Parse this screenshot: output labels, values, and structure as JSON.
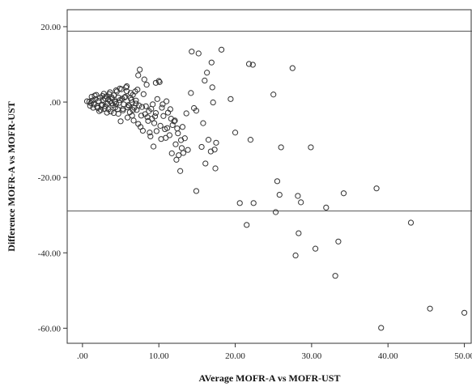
{
  "chart_data": {
    "type": "scatter",
    "title": "",
    "xlabel": "AVerage MOFR-A vs MOFR-UST",
    "ylabel": "Difference MOFR-A vs MOFR-UST",
    "xlim": [
      -2,
      51
    ],
    "ylim": [
      -64,
      24.5
    ],
    "xticks": [
      ".00",
      "10.00",
      "20.00",
      "30.00",
      "40.00",
      "50.00"
    ],
    "xtick_values": [
      0,
      10,
      20,
      30,
      40,
      50
    ],
    "yticks": [
      "20.00",
      ".00",
      "-20.00",
      "-40.00",
      "-60.00"
    ],
    "ytick_values": [
      20,
      0,
      -20,
      -40,
      -60
    ],
    "reference_lines": [
      18.8,
      -28.9
    ],
    "grid": false,
    "marker": "open-circle",
    "points": [
      [
        0.6,
        0.2
      ],
      [
        0.9,
        0.1
      ],
      [
        1.1,
        -0.3
      ],
      [
        1.3,
        0.4
      ],
      [
        1.5,
        -0.6
      ],
      [
        1.7,
        0.8
      ],
      [
        1.9,
        -1.2
      ],
      [
        2.1,
        0.3
      ],
      [
        2.3,
        1.1
      ],
      [
        2.5,
        -0.9
      ],
      [
        2.7,
        0.6
      ],
      [
        2.9,
        -1.8
      ],
      [
        3.1,
        1.5
      ],
      [
        3.3,
        -0.4
      ],
      [
        3.5,
        2.1
      ],
      [
        3.7,
        -2.5
      ],
      [
        3.9,
        0.9
      ],
      [
        4.1,
        1.8
      ],
      [
        4.3,
        -1.4
      ],
      [
        4.5,
        2.8
      ],
      [
        4.7,
        -3.1
      ],
      [
        4.9,
        0.5
      ],
      [
        5.1,
        3.4
      ],
      [
        5.3,
        -2.2
      ],
      [
        5.5,
        1.2
      ],
      [
        5.7,
        3.9
      ],
      [
        5.9,
        -4.1
      ],
      [
        6.1,
        -1.0
      ],
      [
        6.3,
        2.4
      ],
      [
        6.5,
        -3.6
      ],
      [
        1.2,
        1.4
      ],
      [
        1.6,
        1.7
      ],
      [
        2.0,
        -1.6
      ],
      [
        2.4,
        -2.1
      ],
      [
        2.8,
        2.2
      ],
      [
        3.2,
        -2.8
      ],
      [
        3.6,
        2.6
      ],
      [
        4.0,
        -0.8
      ],
      [
        4.4,
        3.1
      ],
      [
        4.8,
        -0.2
      ],
      [
        1.0,
        -1.0
      ],
      [
        1.4,
        -1.5
      ],
      [
        1.8,
        1.9
      ],
      [
        2.2,
        -2.4
      ],
      [
        2.6,
        1.6
      ],
      [
        3.0,
        -1.1
      ],
      [
        3.4,
        0.7
      ],
      [
        3.8,
        1.3
      ],
      [
        4.2,
        0.1
      ],
      [
        4.6,
        -1.9
      ],
      [
        5.0,
        -5.1
      ],
      [
        5.4,
        -0.6
      ],
      [
        5.8,
        2.9
      ],
      [
        6.2,
        -2.7
      ],
      [
        6.6,
        1.9
      ],
      [
        6.8,
        -1.5
      ],
      [
        7.0,
        0.4
      ],
      [
        7.2,
        3.3
      ],
      [
        7.4,
        -0.9
      ],
      [
        7.6,
        -6.6
      ],
      [
        7.8,
        -1.3
      ],
      [
        8.0,
        2.1
      ],
      [
        8.2,
        -3.2
      ],
      [
        8.4,
        4.6
      ],
      [
        8.6,
        -5.0
      ],
      [
        8.8,
        -8.1
      ],
      [
        9.0,
        -1.8
      ],
      [
        9.2,
        -0.6
      ],
      [
        9.4,
        -5.6
      ],
      [
        9.6,
        -2.9
      ],
      [
        9.8,
        0.8
      ],
      [
        10.0,
        5.6
      ],
      [
        10.2,
        -6.3
      ],
      [
        10.4,
        -1.5
      ],
      [
        10.6,
        -3.7
      ],
      [
        10.8,
        -7.2
      ],
      [
        11.0,
        0.2
      ],
      [
        11.2,
        -2.8
      ],
      [
        11.4,
        -8.8
      ],
      [
        11.6,
        -4.4
      ],
      [
        11.8,
        -6.1
      ],
      [
        12.0,
        -5.1
      ],
      [
        12.2,
        -11.2
      ],
      [
        12.4,
        -7.0
      ],
      [
        12.6,
        -14.1
      ],
      [
        12.8,
        -18.3
      ],
      [
        13.0,
        -12.2
      ],
      [
        13.2,
        -13.5
      ],
      [
        13.4,
        -9.6
      ],
      [
        13.6,
        -3.0
      ],
      [
        7.5,
        8.6
      ],
      [
        7.3,
        7.1
      ],
      [
        8.1,
        6.0
      ],
      [
        9.6,
        5.1
      ],
      [
        10.1,
        5.3
      ],
      [
        14.3,
        13.4
      ],
      [
        15.2,
        12.9
      ],
      [
        16.0,
        5.7
      ],
      [
        16.3,
        7.8
      ],
      [
        16.9,
        10.5
      ],
      [
        17.0,
        3.9
      ],
      [
        17.1,
        -0.1
      ],
      [
        17.3,
        -12.6
      ],
      [
        17.5,
        -10.8
      ],
      [
        16.5,
        -10.0
      ],
      [
        16.8,
        -13.1
      ],
      [
        17.4,
        -17.6
      ],
      [
        16.1,
        -16.3
      ],
      [
        15.6,
        -11.9
      ],
      [
        14.9,
        -23.6
      ],
      [
        14.2,
        2.4
      ],
      [
        14.9,
        -2.3
      ],
      [
        15.8,
        -5.6
      ],
      [
        18.2,
        13.9
      ],
      [
        19.4,
        0.8
      ],
      [
        20.0,
        -8.1
      ],
      [
        21.8,
        10.1
      ],
      [
        22.0,
        -10.0
      ],
      [
        22.4,
        -26.8
      ],
      [
        22.3,
        9.9
      ],
      [
        20.6,
        -26.8
      ],
      [
        21.5,
        -32.6
      ],
      [
        25.0,
        2.0
      ],
      [
        25.5,
        -21.0
      ],
      [
        25.8,
        -24.6
      ],
      [
        26.0,
        -12.0
      ],
      [
        25.3,
        -29.2
      ],
      [
        27.5,
        9.0
      ],
      [
        28.2,
        -24.9
      ],
      [
        28.6,
        -26.6
      ],
      [
        28.3,
        -34.8
      ],
      [
        29.9,
        -12.0
      ],
      [
        27.9,
        -40.7
      ],
      [
        30.5,
        -38.9
      ],
      [
        31.9,
        -28.0
      ],
      [
        33.1,
        -46.1
      ],
      [
        33.5,
        -37.0
      ],
      [
        34.2,
        -24.2
      ],
      [
        38.5,
        -22.9
      ],
      [
        39.1,
        -59.9
      ],
      [
        43.0,
        -32.0
      ],
      [
        45.5,
        -54.8
      ],
      [
        50.0,
        -55.9
      ],
      [
        5.2,
        0.9
      ],
      [
        6.0,
        -0.8
      ],
      [
        6.4,
        0.6
      ],
      [
        7.1,
        -2.1
      ],
      [
        7.7,
        -3.6
      ],
      [
        8.3,
        -1.1
      ],
      [
        8.7,
        -2.4
      ],
      [
        9.1,
        -4.4
      ],
      [
        9.5,
        -3.8
      ],
      [
        10.5,
        -0.6
      ],
      [
        11.1,
        -6.9
      ],
      [
        11.5,
        -1.9
      ],
      [
        12.1,
        -4.9
      ],
      [
        12.5,
        -8.3
      ],
      [
        13.1,
        -6.6
      ],
      [
        3.6,
        0.2
      ],
      [
        4.4,
        -0.5
      ],
      [
        5.6,
        1.4
      ],
      [
        6.7,
        -4.9
      ],
      [
        7.9,
        -7.6
      ],
      [
        8.9,
        -9.1
      ],
      [
        9.3,
        -11.8
      ],
      [
        10.3,
        -9.8
      ],
      [
        11.7,
        -13.6
      ],
      [
        12.9,
        -10.1
      ],
      [
        13.8,
        -12.7
      ],
      [
        14.6,
        -1.6
      ],
      [
        5.9,
        -1.4
      ],
      [
        6.5,
        -0.1
      ],
      [
        7.3,
        -5.8
      ],
      [
        8.5,
        -4.0
      ],
      [
        9.7,
        -7.7
      ],
      [
        10.9,
        -9.5
      ],
      [
        12.3,
        -15.3
      ],
      [
        4.9,
        3.6
      ],
      [
        5.8,
        4.2
      ],
      [
        6.9,
        2.8
      ],
      [
        2.6,
        -0.7
      ],
      [
        3.0,
        0.9
      ],
      [
        3.4,
        -1.9
      ],
      [
        3.8,
        -0.3
      ],
      [
        4.1,
        -2.9
      ],
      [
        4.7,
        1.2
      ],
      [
        5.3,
        -1.8
      ],
      [
        6.3,
        1.1
      ],
      [
        6.6,
        -2.1
      ],
      [
        7.0,
        -0.4
      ]
    ]
  }
}
